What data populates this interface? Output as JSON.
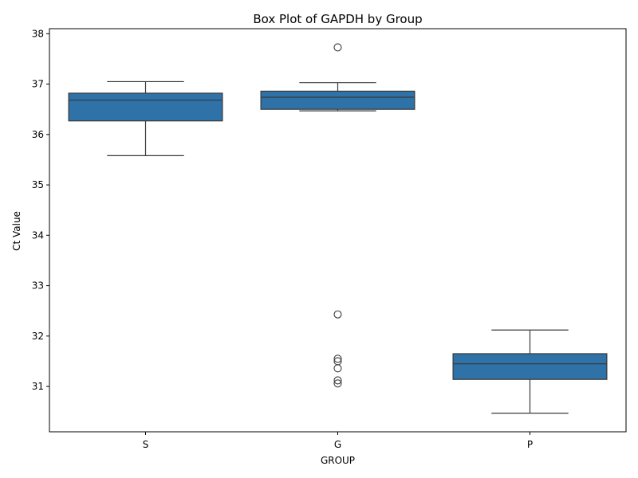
{
  "chart_data": {
    "type": "box",
    "title": "Box Plot of GAPDH by Group",
    "xlabel": "GROUP",
    "ylabel": "Ct Value",
    "ylim": [
      30.1,
      38.1
    ],
    "yticks": [
      31,
      32,
      33,
      34,
      35,
      36,
      37,
      38
    ],
    "grid": false,
    "box_color": "#2e72a8",
    "line_color": "#3a3a3a",
    "categories": [
      "S",
      "G",
      "P"
    ],
    "boxes": [
      {
        "category": "S",
        "whisker_low": 35.58,
        "q1": 36.27,
        "median": 36.68,
        "q3": 36.82,
        "whisker_high": 37.05,
        "outliers": []
      },
      {
        "category": "G",
        "whisker_low": 36.47,
        "q1": 36.5,
        "median": 36.74,
        "q3": 36.86,
        "whisker_high": 37.03,
        "outliers": [
          37.73,
          32.43,
          31.55,
          31.5,
          31.36,
          31.12,
          31.06
        ]
      },
      {
        "category": "P",
        "whisker_low": 30.47,
        "q1": 31.14,
        "median": 31.45,
        "q3": 31.65,
        "whisker_high": 32.12,
        "outliers": []
      }
    ]
  }
}
